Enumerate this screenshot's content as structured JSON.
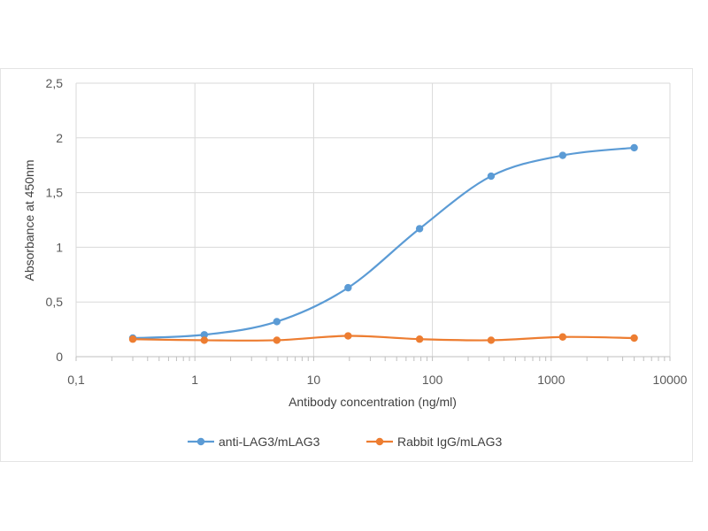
{
  "chart_data": {
    "type": "line",
    "title": "",
    "xlabel": "Antibody concentration (ng/ml)",
    "ylabel": "Absorbance at 450nm",
    "x_scale": "log",
    "xlim": [
      0.1,
      10000
    ],
    "ylim": [
      0,
      2.5
    ],
    "x_tick_labels": [
      "0,1",
      "1",
      "10",
      "100",
      "1000",
      "10000"
    ],
    "y_tick_labels": [
      "0",
      "0,5",
      "1",
      "1,5",
      "2",
      "2,5"
    ],
    "grid": true,
    "legend_position": "bottom",
    "series": [
      {
        "name": "anti-LAG3/mLAG3",
        "color": "#5b9bd5",
        "x": [
          0.3,
          1.2,
          4.9,
          19.5,
          78,
          312,
          1250,
          5000
        ],
        "y": [
          0.17,
          0.2,
          0.32,
          0.63,
          1.17,
          1.65,
          1.84,
          1.91
        ]
      },
      {
        "name": "Rabbit IgG/mLAG3",
        "color": "#ed7d31",
        "x": [
          0.3,
          1.2,
          4.9,
          19.5,
          78,
          312,
          1250,
          5000
        ],
        "y": [
          0.16,
          0.15,
          0.15,
          0.19,
          0.16,
          0.15,
          0.18,
          0.17
        ]
      }
    ]
  }
}
